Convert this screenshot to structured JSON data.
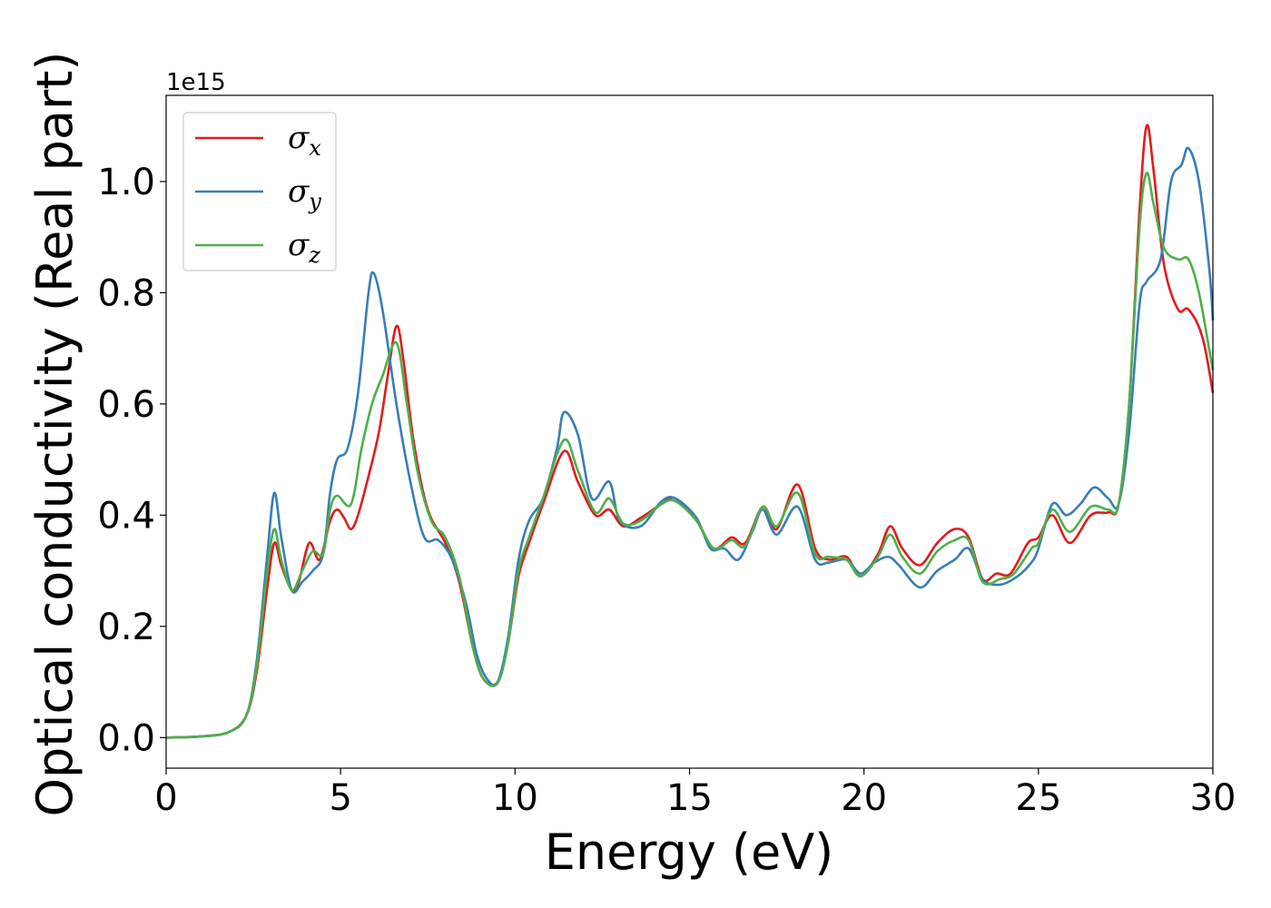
{
  "chart_data": {
    "type": "line",
    "title": "",
    "xlabel": "Energy (eV)",
    "ylabel": "Optical conductivity (Real part)",
    "y_offset_text": "1e15",
    "xlim": [
      0,
      30
    ],
    "ylim": [
      -0.055,
      1.155
    ],
    "x_ticks": [
      0,
      5,
      10,
      15,
      20,
      25,
      30
    ],
    "y_ticks": [
      0.0,
      0.2,
      0.4,
      0.6,
      0.8,
      1.0
    ],
    "y_tick_labels": [
      "0.0",
      "0.2",
      "0.4",
      "0.6",
      "0.8",
      "1.0"
    ],
    "x_tick_labels": [
      "0",
      "5",
      "10",
      "15",
      "20",
      "25",
      "30"
    ],
    "grid": false,
    "legend_position": "top-left",
    "series": [
      {
        "name": "σx",
        "symbol": "σ",
        "subscript": "x",
        "color": "#e41a1c",
        "points": [
          [
            0,
            0
          ],
          [
            1,
            0.002
          ],
          [
            1.8,
            0.01
          ],
          [
            2.3,
            0.04
          ],
          [
            2.6,
            0.12
          ],
          [
            2.9,
            0.27
          ],
          [
            3.1,
            0.35
          ],
          [
            3.3,
            0.31
          ],
          [
            3.6,
            0.265
          ],
          [
            3.8,
            0.28
          ],
          [
            4.1,
            0.35
          ],
          [
            4.4,
            0.32
          ],
          [
            4.7,
            0.39
          ],
          [
            4.9,
            0.41
          ],
          [
            5.1,
            0.395
          ],
          [
            5.3,
            0.375
          ],
          [
            5.5,
            0.4
          ],
          [
            5.8,
            0.47
          ],
          [
            6.1,
            0.55
          ],
          [
            6.35,
            0.65
          ],
          [
            6.6,
            0.74
          ],
          [
            6.8,
            0.68
          ],
          [
            7.1,
            0.53
          ],
          [
            7.5,
            0.41
          ],
          [
            8.0,
            0.35
          ],
          [
            8.4,
            0.28
          ],
          [
            8.8,
            0.16
          ],
          [
            9.1,
            0.105
          ],
          [
            9.5,
            0.1
          ],
          [
            9.8,
            0.17
          ],
          [
            10.1,
            0.29
          ],
          [
            10.4,
            0.35
          ],
          [
            10.8,
            0.42
          ],
          [
            11.4,
            0.515
          ],
          [
            11.8,
            0.46
          ],
          [
            12.3,
            0.4
          ],
          [
            12.7,
            0.41
          ],
          [
            13.1,
            0.38
          ],
          [
            13.6,
            0.395
          ],
          [
            14.2,
            0.42
          ],
          [
            14.6,
            0.43
          ],
          [
            15.2,
            0.39
          ],
          [
            15.7,
            0.34
          ],
          [
            16.2,
            0.36
          ],
          [
            16.6,
            0.35
          ],
          [
            17.1,
            0.415
          ],
          [
            17.5,
            0.375
          ],
          [
            18.1,
            0.455
          ],
          [
            18.6,
            0.34
          ],
          [
            19.0,
            0.32
          ],
          [
            19.5,
            0.325
          ],
          [
            19.9,
            0.29
          ],
          [
            20.4,
            0.33
          ],
          [
            20.75,
            0.38
          ],
          [
            21.1,
            0.34
          ],
          [
            21.6,
            0.31
          ],
          [
            22.1,
            0.35
          ],
          [
            22.6,
            0.375
          ],
          [
            23.0,
            0.36
          ],
          [
            23.4,
            0.285
          ],
          [
            23.8,
            0.295
          ],
          [
            24.2,
            0.295
          ],
          [
            24.7,
            0.35
          ],
          [
            25.0,
            0.36
          ],
          [
            25.4,
            0.4
          ],
          [
            25.9,
            0.35
          ],
          [
            26.5,
            0.4
          ],
          [
            27.0,
            0.405
          ],
          [
            27.3,
            0.42
          ],
          [
            27.6,
            0.6
          ],
          [
            27.9,
            0.95
          ],
          [
            28.1,
            1.1
          ],
          [
            28.3,
            1.02
          ],
          [
            28.6,
            0.85
          ],
          [
            29.0,
            0.77
          ],
          [
            29.3,
            0.77
          ],
          [
            29.7,
            0.72
          ],
          [
            30,
            0.62
          ]
        ]
      },
      {
        "name": "σy",
        "symbol": "σ",
        "subscript": "y",
        "color": "#377eb8",
        "points": [
          [
            0,
            0
          ],
          [
            1,
            0.002
          ],
          [
            1.8,
            0.01
          ],
          [
            2.3,
            0.04
          ],
          [
            2.6,
            0.14
          ],
          [
            2.9,
            0.33
          ],
          [
            3.1,
            0.44
          ],
          [
            3.3,
            0.36
          ],
          [
            3.6,
            0.265
          ],
          [
            3.9,
            0.28
          ],
          [
            4.2,
            0.3
          ],
          [
            4.5,
            0.33
          ],
          [
            4.7,
            0.44
          ],
          [
            4.9,
            0.5
          ],
          [
            5.2,
            0.52
          ],
          [
            5.5,
            0.62
          ],
          [
            5.8,
            0.8
          ],
          [
            5.95,
            0.835
          ],
          [
            6.2,
            0.77
          ],
          [
            6.6,
            0.6
          ],
          [
            7.0,
            0.46
          ],
          [
            7.4,
            0.36
          ],
          [
            7.8,
            0.355
          ],
          [
            8.2,
            0.32
          ],
          [
            8.6,
            0.24
          ],
          [
            8.9,
            0.15
          ],
          [
            9.2,
            0.105
          ],
          [
            9.5,
            0.1
          ],
          [
            9.8,
            0.18
          ],
          [
            10.1,
            0.32
          ],
          [
            10.4,
            0.39
          ],
          [
            10.8,
            0.43
          ],
          [
            11.2,
            0.52
          ],
          [
            11.4,
            0.585
          ],
          [
            11.8,
            0.545
          ],
          [
            12.2,
            0.43
          ],
          [
            12.7,
            0.46
          ],
          [
            13.0,
            0.39
          ],
          [
            13.6,
            0.38
          ],
          [
            14.2,
            0.425
          ],
          [
            14.6,
            0.43
          ],
          [
            15.2,
            0.395
          ],
          [
            15.6,
            0.34
          ],
          [
            16.0,
            0.34
          ],
          [
            16.4,
            0.32
          ],
          [
            16.8,
            0.37
          ],
          [
            17.1,
            0.41
          ],
          [
            17.5,
            0.365
          ],
          [
            18.1,
            0.415
          ],
          [
            18.6,
            0.32
          ],
          [
            19.0,
            0.315
          ],
          [
            19.5,
            0.32
          ],
          [
            19.9,
            0.295
          ],
          [
            20.3,
            0.315
          ],
          [
            20.7,
            0.325
          ],
          [
            21.0,
            0.31
          ],
          [
            21.6,
            0.27
          ],
          [
            22.1,
            0.3
          ],
          [
            22.6,
            0.32
          ],
          [
            23.0,
            0.34
          ],
          [
            23.4,
            0.285
          ],
          [
            23.9,
            0.275
          ],
          [
            24.4,
            0.29
          ],
          [
            24.8,
            0.315
          ],
          [
            25.0,
            0.34
          ],
          [
            25.4,
            0.42
          ],
          [
            25.8,
            0.4
          ],
          [
            26.2,
            0.42
          ],
          [
            26.6,
            0.45
          ],
          [
            27.0,
            0.43
          ],
          [
            27.3,
            0.42
          ],
          [
            27.6,
            0.55
          ],
          [
            27.9,
            0.78
          ],
          [
            28.1,
            0.82
          ],
          [
            28.5,
            0.86
          ],
          [
            28.8,
            1.0
          ],
          [
            29.1,
            1.03
          ],
          [
            29.3,
            1.06
          ],
          [
            29.6,
            1.0
          ],
          [
            29.9,
            0.84
          ],
          [
            30,
            0.75
          ]
        ]
      },
      {
        "name": "σz",
        "symbol": "σ",
        "subscript": "z",
        "color": "#4daf4a",
        "points": [
          [
            0,
            0
          ],
          [
            1,
            0.002
          ],
          [
            1.8,
            0.01
          ],
          [
            2.3,
            0.04
          ],
          [
            2.6,
            0.13
          ],
          [
            2.9,
            0.3
          ],
          [
            3.1,
            0.375
          ],
          [
            3.3,
            0.32
          ],
          [
            3.6,
            0.265
          ],
          [
            3.9,
            0.3
          ],
          [
            4.2,
            0.335
          ],
          [
            4.5,
            0.33
          ],
          [
            4.7,
            0.41
          ],
          [
            4.9,
            0.435
          ],
          [
            5.3,
            0.42
          ],
          [
            5.6,
            0.52
          ],
          [
            5.9,
            0.6
          ],
          [
            6.2,
            0.65
          ],
          [
            6.6,
            0.71
          ],
          [
            6.9,
            0.6
          ],
          [
            7.2,
            0.48
          ],
          [
            7.6,
            0.39
          ],
          [
            8.0,
            0.36
          ],
          [
            8.4,
            0.29
          ],
          [
            8.8,
            0.16
          ],
          [
            9.1,
            0.105
          ],
          [
            9.5,
            0.098
          ],
          [
            9.8,
            0.17
          ],
          [
            10.1,
            0.3
          ],
          [
            10.4,
            0.36
          ],
          [
            10.8,
            0.43
          ],
          [
            11.4,
            0.535
          ],
          [
            11.8,
            0.48
          ],
          [
            12.3,
            0.405
          ],
          [
            12.7,
            0.43
          ],
          [
            13.1,
            0.385
          ],
          [
            13.6,
            0.39
          ],
          [
            14.2,
            0.42
          ],
          [
            14.6,
            0.425
          ],
          [
            15.2,
            0.39
          ],
          [
            15.7,
            0.34
          ],
          [
            16.2,
            0.355
          ],
          [
            16.6,
            0.345
          ],
          [
            17.1,
            0.415
          ],
          [
            17.5,
            0.38
          ],
          [
            18.1,
            0.44
          ],
          [
            18.6,
            0.33
          ],
          [
            19.0,
            0.325
          ],
          [
            19.5,
            0.32
          ],
          [
            19.9,
            0.29
          ],
          [
            20.4,
            0.325
          ],
          [
            20.75,
            0.365
          ],
          [
            21.1,
            0.325
          ],
          [
            21.6,
            0.295
          ],
          [
            22.1,
            0.335
          ],
          [
            22.6,
            0.355
          ],
          [
            23.0,
            0.355
          ],
          [
            23.4,
            0.28
          ],
          [
            23.9,
            0.285
          ],
          [
            24.3,
            0.295
          ],
          [
            24.8,
            0.34
          ],
          [
            25.0,
            0.35
          ],
          [
            25.4,
            0.41
          ],
          [
            25.9,
            0.37
          ],
          [
            26.5,
            0.415
          ],
          [
            27.0,
            0.41
          ],
          [
            27.3,
            0.42
          ],
          [
            27.6,
            0.6
          ],
          [
            27.9,
            0.92
          ],
          [
            28.1,
            1.015
          ],
          [
            28.3,
            0.96
          ],
          [
            28.6,
            0.88
          ],
          [
            29.0,
            0.86
          ],
          [
            29.3,
            0.86
          ],
          [
            29.6,
            0.8
          ],
          [
            30,
            0.66
          ]
        ]
      }
    ]
  }
}
